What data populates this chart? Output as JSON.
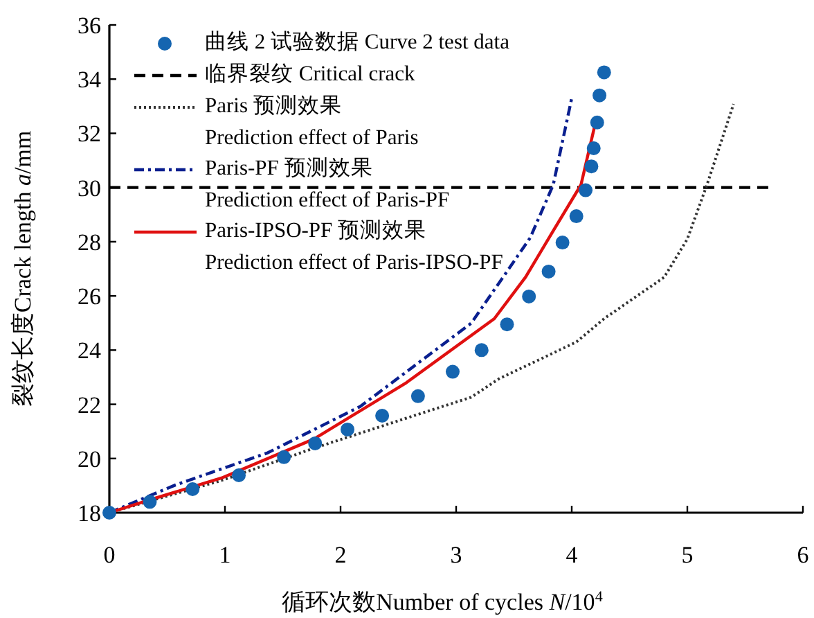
{
  "chart_data": {
    "type": "line",
    "xlabel": "循环次数Number of cycles *N*/10$^{4}$",
    "ylabel": "裂纹长度Crack length *a*/mm",
    "xlim": [
      0,
      6
    ],
    "ylim": [
      18,
      36
    ],
    "xticks": [
      0,
      1,
      2,
      3,
      4,
      5,
      6
    ],
    "yticks": [
      18,
      20,
      22,
      24,
      26,
      28,
      30,
      32,
      34,
      36
    ],
    "legend": "top left",
    "grid": false,
    "series": [
      {
        "name": "曲线 2 试验数据 Curve 2 test data",
        "type": "scatter",
        "marker": "circle",
        "color": "#1565b0",
        "x": [
          0,
          0.35,
          0.72,
          1.12,
          1.51,
          1.78,
          2.06,
          2.36,
          2.67,
          2.97,
          3.22,
          3.44,
          3.63,
          3.8,
          3.92,
          4.04,
          4.12,
          4.17,
          4.19,
          4.22,
          4.24,
          4.28
        ],
        "values": [
          18,
          18.4,
          18.87,
          19.38,
          20.05,
          20.56,
          21.07,
          21.58,
          22.3,
          23.2,
          24.0,
          24.95,
          25.98,
          26.9,
          27.97,
          28.94,
          29.9,
          30.78,
          31.45,
          32.4,
          33.4,
          34.25
        ]
      },
      {
        "name": "临界裂纹 Critical crack",
        "line_style": "dashed",
        "color": "#000000",
        "x": [
          0,
          5.7
        ],
        "values": [
          30,
          30
        ]
      },
      {
        "name": "Paris 预测效果 Prediction effect of Paris",
        "line_style": "dotted",
        "color": "#333333",
        "x": [
          0,
          0.97,
          1.77,
          2.57,
          3.13,
          3.37,
          4.04,
          4.28,
          4.8,
          5.0,
          5.17,
          5.4
        ],
        "values": [
          18,
          19.19,
          20.38,
          21.49,
          22.26,
          22.94,
          24.3,
          25.16,
          26.69,
          28.1,
          30.1,
          33.08
        ]
      },
      {
        "name": "Paris-PF 预测效果 Prediction effect of Paris-PF",
        "line_style": "dashdot",
        "color": "#0a1f8f",
        "x": [
          0,
          0.57,
          1.37,
          2.17,
          3.13,
          3.64,
          3.84,
          4.0
        ],
        "values": [
          18,
          19.02,
          20.21,
          21.92,
          24.99,
          28.14,
          30.1,
          33.3
        ]
      },
      {
        "name": "Paris-IPSO-PF 预测效果 Prediction effect of Paris-IPSO-PF",
        "line_style": "solid",
        "color": "#e01010",
        "x": [
          0,
          0.37,
          0.97,
          1.77,
          2.57,
          3.33,
          3.6,
          3.84,
          4.08,
          4.2
        ],
        "values": [
          18,
          18.5,
          19.28,
          20.72,
          22.8,
          25.16,
          26.69,
          28.4,
          30.1,
          32.3
        ]
      }
    ]
  }
}
